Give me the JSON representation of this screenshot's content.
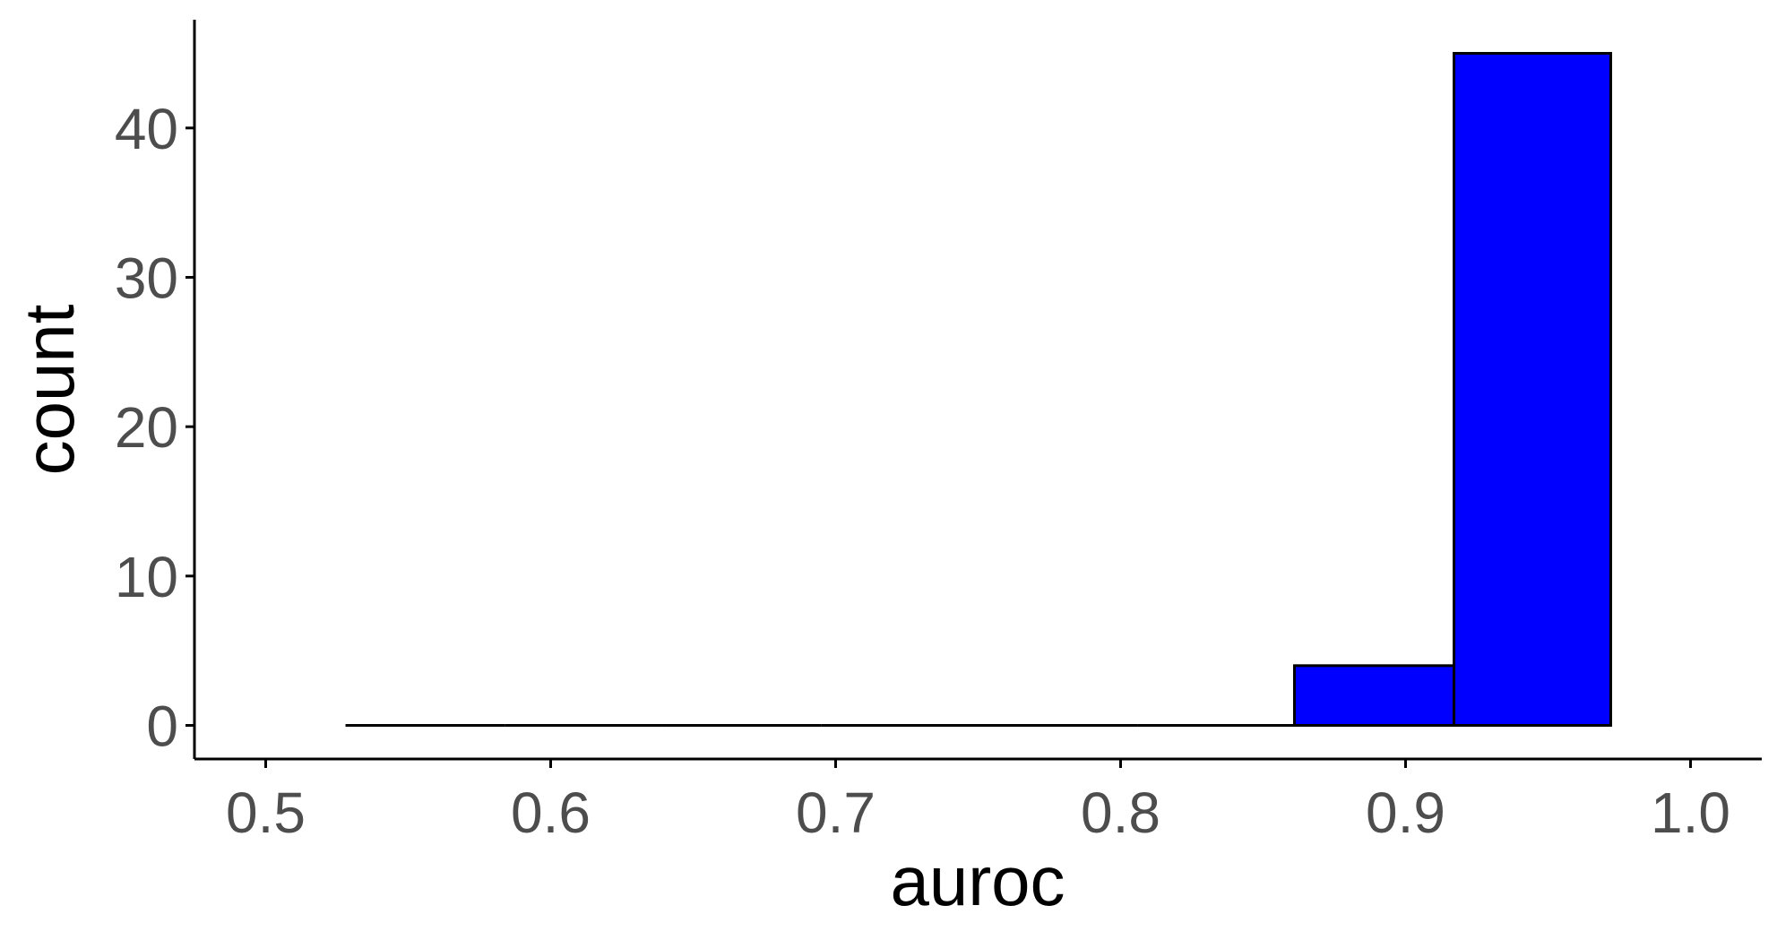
{
  "chart_data": {
    "type": "bar",
    "subtype": "histogram",
    "xlabel": "auroc",
    "ylabel": "count",
    "xlim": [
      0.475,
      1.025
    ],
    "ylim": [
      -2.25,
      47.25
    ],
    "xticks": [
      0.5,
      0.6,
      0.7,
      0.8,
      0.9,
      1.0
    ],
    "xtick_labels": [
      "0.5",
      "0.6",
      "0.7",
      "0.8",
      "0.9",
      "1.0"
    ],
    "yticks": [
      0,
      10,
      20,
      30,
      40
    ],
    "ytick_labels": [
      "0",
      "10",
      "20",
      "30",
      "40"
    ],
    "bins": [
      {
        "x0": 0.528,
        "x1": 0.584,
        "count": 0
      },
      {
        "x0": 0.584,
        "x1": 0.639,
        "count": 0
      },
      {
        "x0": 0.639,
        "x1": 0.695,
        "count": 0
      },
      {
        "x0": 0.695,
        "x1": 0.75,
        "count": 0
      },
      {
        "x0": 0.75,
        "x1": 0.806,
        "count": 0
      },
      {
        "x0": 0.806,
        "x1": 0.861,
        "count": 0
      },
      {
        "x0": 0.861,
        "x1": 0.917,
        "count": 4
      },
      {
        "x0": 0.917,
        "x1": 0.972,
        "count": 45
      }
    ],
    "fill_color": "#0000ff",
    "edge_color": "#000000",
    "grid": false,
    "legend": "none"
  }
}
